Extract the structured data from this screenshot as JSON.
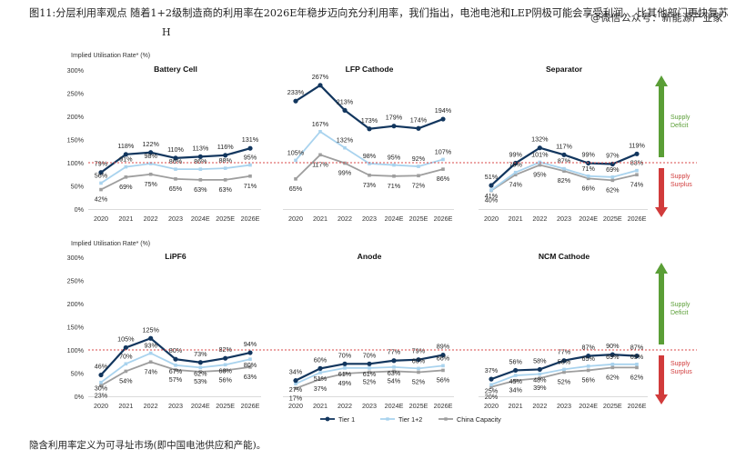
{
  "caption": "图11:分层利用率观点 随着1+2级制造商的利用率在2026E年稳步迈向充分利用率，我们指出，电池电池和LEP阴极可能会享受利润，  比其他部门更快复苏",
  "watermark": "@微信公众号：新能源产业家",
  "stray_letter": "H",
  "footnote": "隐含利用率定义为可寻址市场(即中国电池供应和产能)。",
  "colors": {
    "tier1": "#12365e",
    "tier12": "#a9d3ee",
    "china": "#9e9e9e",
    "reference_line": "#d94a4a",
    "deficit_arrow": "#5a9e36",
    "surplus_arrow": "#d13b3b"
  },
  "row_labels": {
    "top": "Implied Utilisation Rate* (%)",
    "bottom": "Implied Utilisation Rate* (%)"
  },
  "side_labels": {
    "top": {
      "deficit": [
        "Supply",
        "Deficit"
      ],
      "surplus": [
        "Supply",
        "Surplus"
      ]
    },
    "bottom": {
      "deficit": [
        "Supply",
        "Deficit"
      ],
      "surplus": [
        "Supply",
        "Surplus"
      ]
    }
  },
  "legend": [
    "Tier 1",
    "Tier 1+2",
    "China Capacity"
  ],
  "chart_data": [
    {
      "type": "line",
      "title": "Battery Cell",
      "categories": [
        "2020",
        "2021",
        "2022",
        "2023",
        "2024E",
        "2025E",
        "2026E"
      ],
      "ylim": [
        0,
        300
      ],
      "yticks": [
        "0%",
        "50%",
        "100%",
        "150%",
        "200%",
        "250%",
        "300%"
      ],
      "series": [
        {
          "name": "Tier 1",
          "values": [
            79,
            118,
            122,
            110,
            113,
            116,
            131
          ],
          "labels": [
            "79%",
            "118%",
            "122%",
            "110%",
            "113%",
            "116%",
            "131%"
          ]
        },
        {
          "name": "Tier 1+2",
          "values": [
            56,
            91,
            98,
            86,
            86,
            88,
            95
          ],
          "labels": [
            "56%",
            "91%",
            "98%",
            "86%",
            "86%",
            "88%",
            "95%"
          ]
        },
        {
          "name": "China Capacity",
          "values": [
            42,
            69,
            75,
            65,
            63,
            63,
            71
          ],
          "labels": [
            "42%",
            "69%",
            "75%",
            "65%",
            "63%",
            "63%",
            "71%"
          ]
        }
      ]
    },
    {
      "type": "line",
      "title": "LFP Cathode",
      "categories": [
        "2020",
        "2021",
        "2022",
        "2023",
        "2024E",
        "2025E",
        "2026E"
      ],
      "ylim": [
        0,
        300
      ],
      "yticks": [
        "0%",
        "50%",
        "100%",
        "150%",
        "200%",
        "250%",
        "300%"
      ],
      "series": [
        {
          "name": "Tier 1",
          "values": [
            233,
            267,
            213,
            173,
            179,
            174,
            194
          ],
          "labels": [
            "233%",
            "267%",
            "213%",
            "173%",
            "179%",
            "174%",
            "194%"
          ]
        },
        {
          "name": "Tier 1+2",
          "values": [
            105,
            167,
            132,
            98,
            95,
            92,
            107
          ],
          "labels": [
            "105%",
            "167%",
            "132%",
            "98%",
            "95%",
            "92%",
            "107%"
          ]
        },
        {
          "name": "China Capacity",
          "values": [
            65,
            117,
            99,
            73,
            71,
            72,
            86
          ],
          "labels": [
            "65%",
            "117%",
            "99%",
            "73%",
            "71%",
            "72%",
            "86%"
          ]
        }
      ]
    },
    {
      "type": "line",
      "title": "Separator",
      "categories": [
        "2020",
        "2021",
        "2022",
        "2023",
        "2024E",
        "2025E",
        "2026E"
      ],
      "ylim": [
        0,
        300
      ],
      "yticks": [
        "0%",
        "50%",
        "100%",
        "150%",
        "200%",
        "250%",
        "300%"
      ],
      "series": [
        {
          "name": "Tier 1",
          "values": [
            51,
            99,
            132,
            117,
            99,
            97,
            119
          ],
          "labels": [
            "51%",
            "99%",
            "132%",
            "117%",
            "99%",
            "97%",
            "119%"
          ]
        },
        {
          "name": "Tier 1+2",
          "values": [
            41,
            79,
            101,
            87,
            71,
            69,
            83
          ],
          "labels": [
            "41%",
            "79%",
            "101%",
            "87%",
            "71%",
            "69%",
            "83%"
          ]
        },
        {
          "name": "China Capacity",
          "values": [
            40,
            74,
            95,
            82,
            66,
            62,
            74
          ],
          "labels": [
            "40%",
            "74%",
            "95%",
            "82%",
            "66%",
            "62%",
            "74%"
          ]
        }
      ]
    },
    {
      "type": "line",
      "title": "LiPF6",
      "categories": [
        "2020",
        "2021",
        "2022",
        "2023",
        "2024E",
        "2025E",
        "2026E"
      ],
      "ylim": [
        0,
        300
      ],
      "yticks": [
        "0%",
        "50%",
        "100%",
        "150%",
        "200%",
        "250%",
        "300%"
      ],
      "series": [
        {
          "name": "Tier 1",
          "values": [
            46,
            105,
            125,
            80,
            73,
            82,
            94
          ],
          "labels": [
            "46%",
            "105%",
            "125%",
            "80%",
            "73%",
            "82%",
            "94%"
          ]
        },
        {
          "name": "Tier 1+2",
          "values": [
            30,
            70,
            93,
            67,
            62,
            68,
            80
          ],
          "labels": [
            "30%",
            "70%",
            "93%",
            "67%",
            "62%",
            "68%",
            "80%"
          ]
        },
        {
          "name": "China Capacity",
          "values": [
            23,
            54,
            74,
            57,
            53,
            56,
            63
          ],
          "labels": [
            "23%",
            "54%",
            "74%",
            "57%",
            "53%",
            "56%",
            "63%"
          ]
        }
      ]
    },
    {
      "type": "line",
      "title": "Anode",
      "categories": [
        "2020",
        "2021",
        "2022",
        "2023",
        "2024E",
        "2025E",
        "2026E"
      ],
      "ylim": [
        0,
        300
      ],
      "yticks": [
        "0%",
        "50%",
        "100%",
        "150%",
        "200%",
        "250%",
        "300%"
      ],
      "series": [
        {
          "name": "Tier 1",
          "values": [
            34,
            60,
            70,
            70,
            77,
            79,
            89
          ],
          "labels": [
            "34%",
            "60%",
            "70%",
            "70%",
            "77%",
            "79%",
            "89%"
          ]
        },
        {
          "name": "Tier 1+2",
          "values": [
            27,
            51,
            61,
            61,
            63,
            60,
            66
          ],
          "labels": [
            "27%",
            "51%",
            "61%",
            "61%",
            "63%",
            "60%",
            "66%"
          ]
        },
        {
          "name": "China Capacity",
          "values": [
            17,
            37,
            49,
            52,
            54,
            52,
            56
          ],
          "labels": [
            "17%",
            "37%",
            "49%",
            "52%",
            "54%",
            "52%",
            "56%"
          ]
        }
      ]
    },
    {
      "type": "line",
      "title": "NCM Cathode",
      "categories": [
        "2020",
        "2021",
        "2022",
        "2023",
        "2024E",
        "2025E",
        "2026E"
      ],
      "ylim": [
        0,
        300
      ],
      "yticks": [
        "0%",
        "50%",
        "100%",
        "150%",
        "200%",
        "250%",
        "300%"
      ],
      "series": [
        {
          "name": "Tier 1",
          "values": [
            37,
            56,
            58,
            77,
            87,
            90,
            87
          ],
          "labels": [
            "37%",
            "56%",
            "58%",
            "77%",
            "87%",
            "90%",
            "87%"
          ]
        },
        {
          "name": "Tier 1+2",
          "values": [
            25,
            45,
            48,
            58,
            65,
            69,
            69
          ],
          "labels": [
            "25%",
            "45%",
            "48%",
            "58%",
            "65%",
            "69%",
            "69%"
          ]
        },
        {
          "name": "China Capacity",
          "values": [
            20,
            34,
            39,
            52,
            56,
            62,
            62
          ],
          "labels": [
            "20%",
            "34%",
            "39%",
            "52%",
            "56%",
            "62%",
            "62%"
          ]
        }
      ]
    }
  ]
}
